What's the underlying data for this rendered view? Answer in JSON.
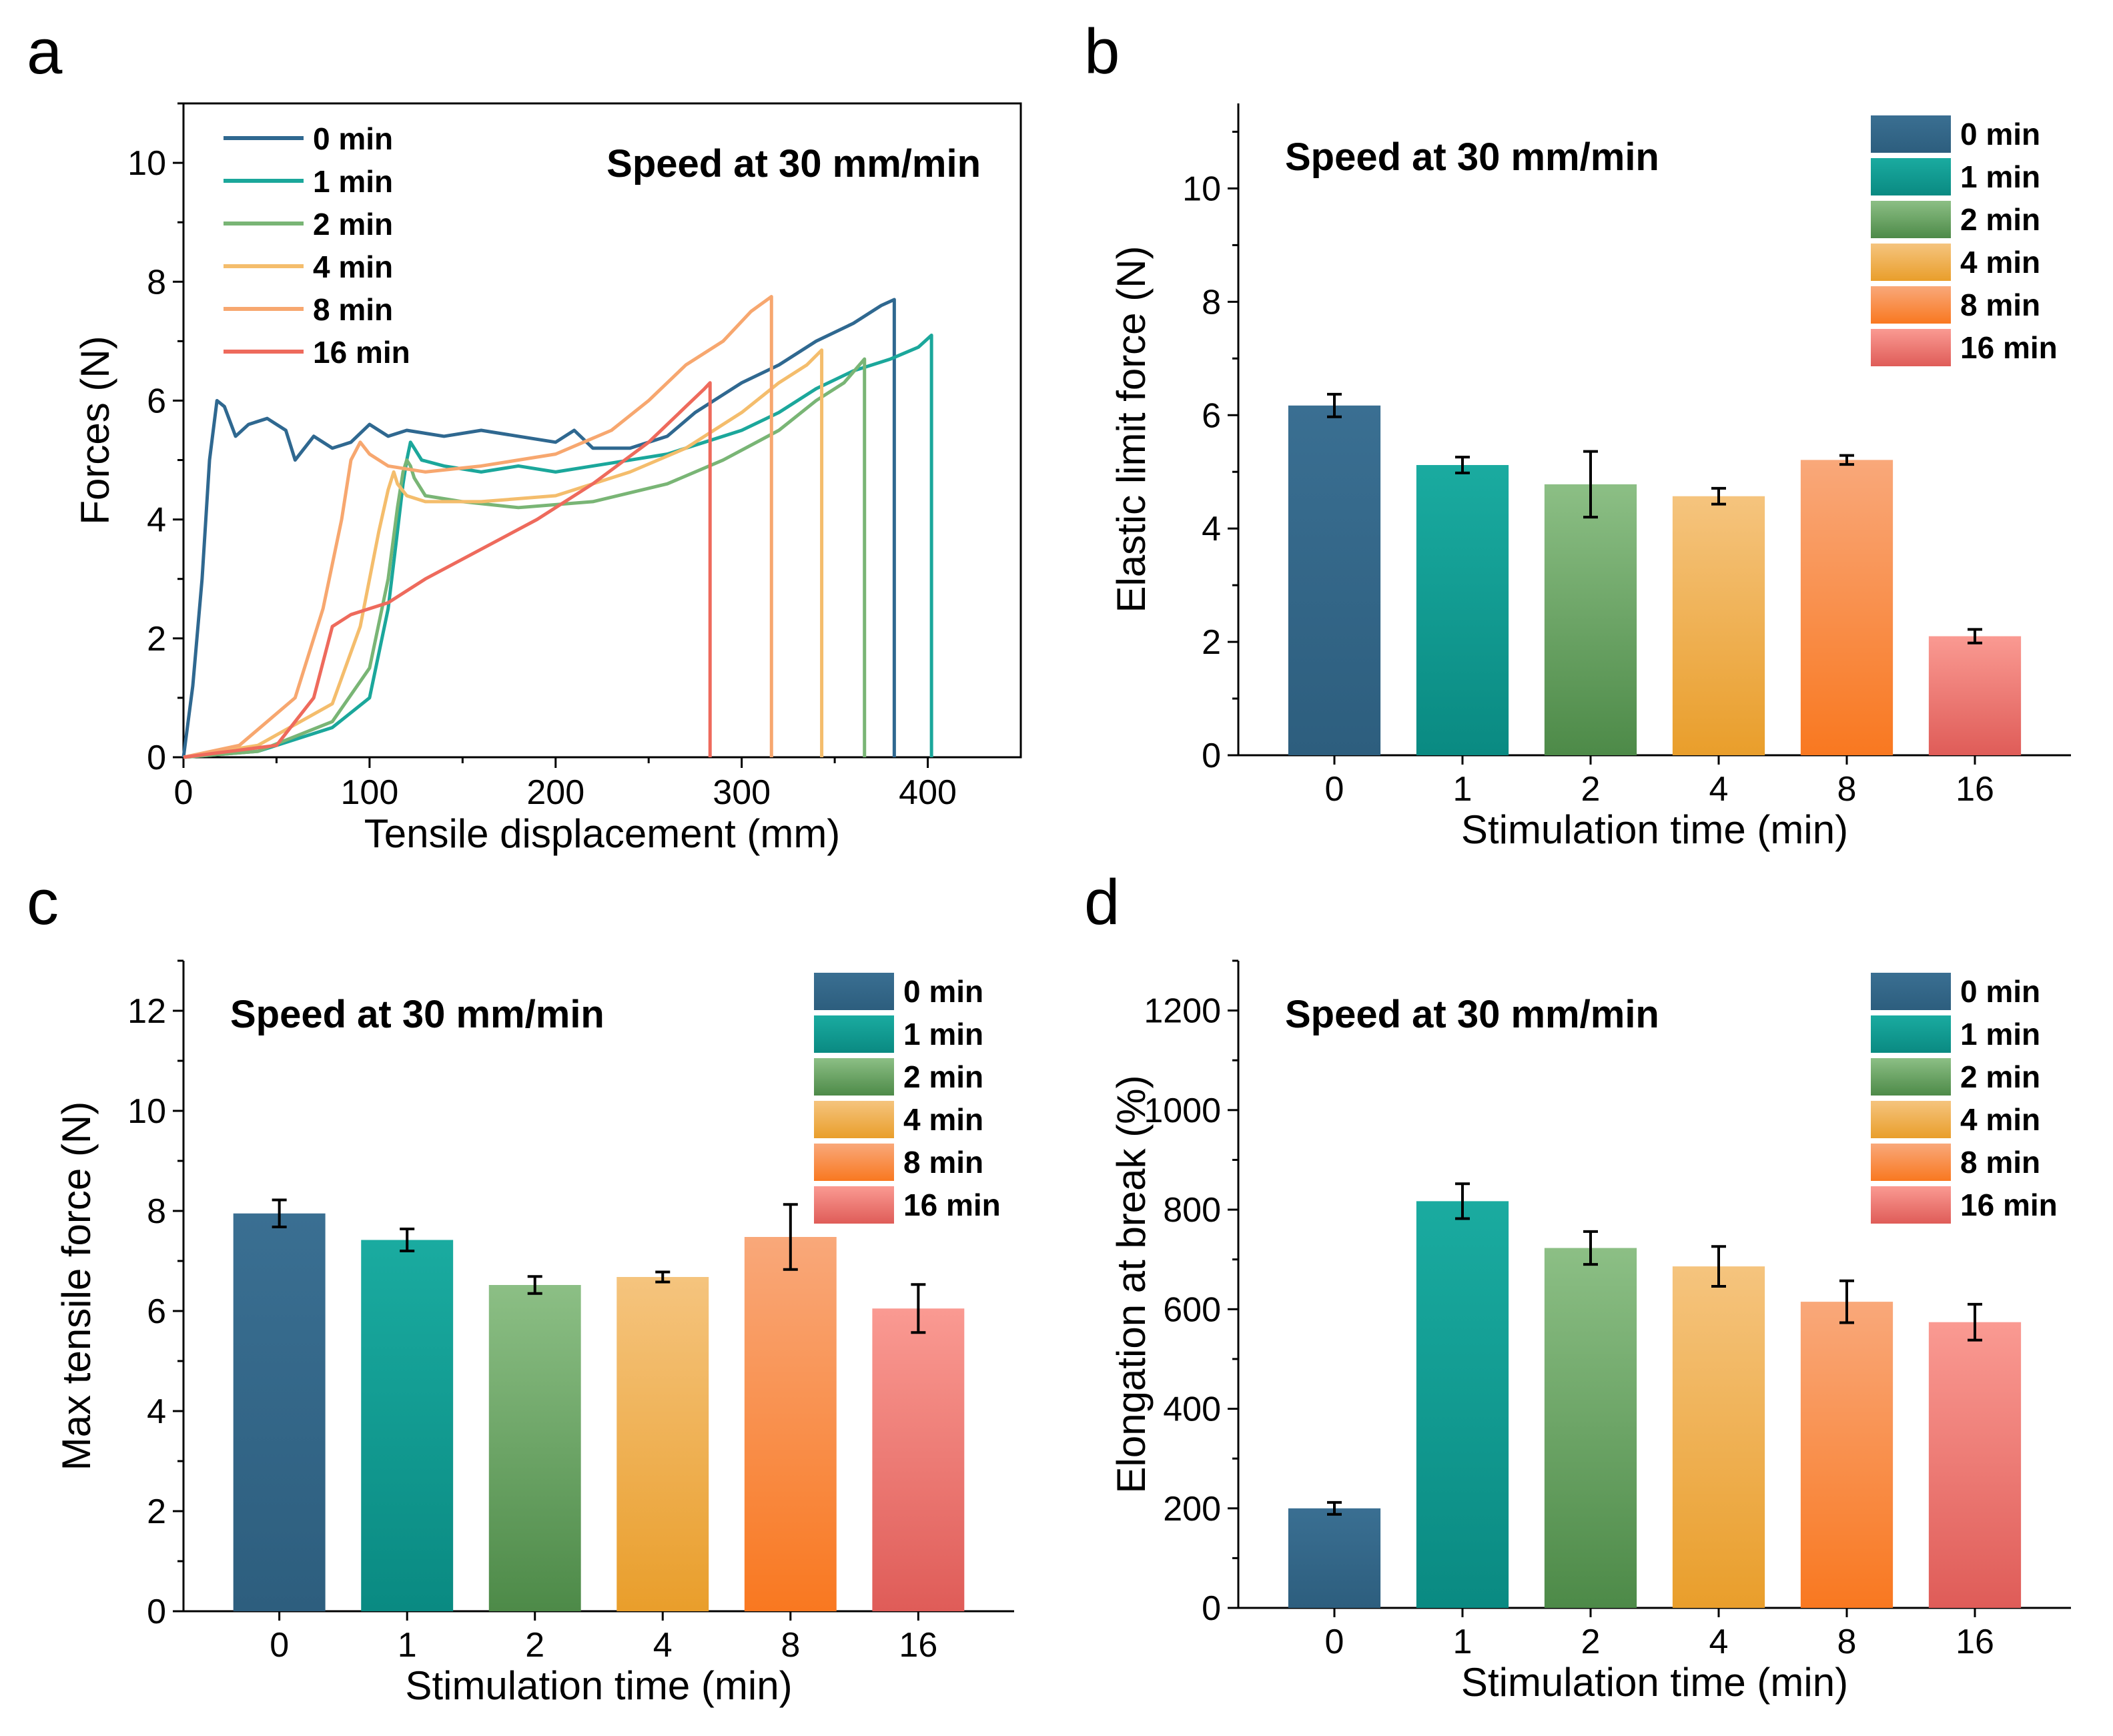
{
  "panel_letters": [
    "a",
    "b",
    "c",
    "d"
  ],
  "legend_labels": [
    "0 min",
    "1 min",
    "2 min",
    "4 min",
    "8 min",
    "16 min"
  ],
  "colors": {
    "0 min": [
      "#3a6f92",
      "#2d5e7e"
    ],
    "1 min": [
      "#1aaba0",
      "#0a8a82"
    ],
    "2 min": [
      "#8cbf85",
      "#4d8a48"
    ],
    "4 min": [
      "#f5c47e",
      "#e99e2b"
    ],
    "8 min": [
      "#f9a87a",
      "#f97820"
    ],
    "16 min": [
      "#fa9a92",
      "#df5c58"
    ],
    "line": {
      "0 min": "#2f6890",
      "1 min": "#1ba79b",
      "2 min": "#79b575",
      "4 min": "#f4bd6c",
      "8 min": "#f7a76f",
      "16 min": "#ee6a5c"
    }
  },
  "chart_data": [
    {
      "panel": "a",
      "type": "line",
      "title": "Speed at 30 mm/min",
      "xlabel": "Tensile displacement (mm)",
      "ylabel": "Forces (N)",
      "xlim": [
        0,
        450
      ],
      "ylim": [
        0,
        11
      ],
      "xticks": [
        0,
        100,
        200,
        300,
        400
      ],
      "yticks": [
        0,
        2,
        4,
        6,
        8,
        10
      ],
      "legend_position": "top-left",
      "series": [
        {
          "name": "0 min",
          "x": [
            0,
            5,
            10,
            14,
            18,
            22,
            28,
            35,
            45,
            55,
            60,
            70,
            80,
            90,
            100,
            110,
            120,
            140,
            160,
            180,
            200,
            210,
            220,
            240,
            260,
            275,
            290,
            300,
            320,
            340,
            360,
            375,
            382,
            382
          ],
          "y": [
            0,
            1.2,
            3.0,
            5.0,
            6.0,
            5.9,
            5.4,
            5.6,
            5.7,
            5.5,
            5.0,
            5.4,
            5.2,
            5.3,
            5.6,
            5.4,
            5.5,
            5.4,
            5.5,
            5.4,
            5.3,
            5.5,
            5.2,
            5.2,
            5.4,
            5.8,
            6.1,
            6.3,
            6.6,
            7.0,
            7.3,
            7.6,
            7.7,
            0
          ]
        },
        {
          "name": "1 min",
          "x": [
            0,
            40,
            80,
            100,
            110,
            115,
            118,
            120,
            122,
            124,
            128,
            140,
            160,
            180,
            200,
            220,
            240,
            260,
            280,
            300,
            320,
            340,
            360,
            380,
            395,
            402,
            402
          ],
          "y": [
            0,
            0.1,
            0.5,
            1.0,
            2.5,
            3.8,
            4.6,
            5.0,
            5.3,
            5.2,
            5.0,
            4.9,
            4.8,
            4.9,
            4.8,
            4.9,
            5.0,
            5.1,
            5.3,
            5.5,
            5.8,
            6.2,
            6.5,
            6.7,
            6.9,
            7.1,
            0
          ]
        },
        {
          "name": "2 min",
          "x": [
            0,
            40,
            80,
            100,
            110,
            115,
            118,
            120,
            122,
            124,
            130,
            150,
            180,
            220,
            260,
            290,
            320,
            340,
            355,
            366,
            366
          ],
          "y": [
            0,
            0.1,
            0.6,
            1.5,
            3.0,
            4.2,
            4.8,
            5.0,
            4.9,
            4.7,
            4.4,
            4.3,
            4.2,
            4.3,
            4.6,
            5.0,
            5.5,
            6.0,
            6.3,
            6.7,
            0
          ]
        },
        {
          "name": "4 min",
          "x": [
            0,
            40,
            80,
            95,
            105,
            110,
            113,
            115,
            120,
            130,
            160,
            200,
            240,
            270,
            300,
            320,
            335,
            343,
            343
          ],
          "y": [
            0,
            0.2,
            0.9,
            2.2,
            3.8,
            4.5,
            4.8,
            4.6,
            4.4,
            4.3,
            4.3,
            4.4,
            4.8,
            5.2,
            5.8,
            6.3,
            6.6,
            6.85,
            0
          ]
        },
        {
          "name": "8 min",
          "x": [
            0,
            30,
            60,
            75,
            85,
            90,
            95,
            100,
            110,
            130,
            160,
            200,
            230,
            250,
            270,
            290,
            305,
            316,
            316
          ],
          "y": [
            0,
            0.2,
            1.0,
            2.5,
            4.0,
            5.0,
            5.3,
            5.1,
            4.9,
            4.8,
            4.9,
            5.1,
            5.5,
            6.0,
            6.6,
            7.0,
            7.5,
            7.75,
            0
          ]
        },
        {
          "name": "16 min",
          "x": [
            0,
            50,
            70,
            80,
            90,
            100,
            110,
            130,
            160,
            190,
            220,
            250,
            270,
            280,
            283,
            283
          ],
          "y": [
            0,
            0.2,
            1.0,
            2.2,
            2.4,
            2.5,
            2.6,
            3.0,
            3.5,
            4.0,
            4.6,
            5.3,
            5.9,
            6.2,
            6.3,
            0
          ]
        }
      ]
    },
    {
      "panel": "b",
      "type": "bar",
      "title": "Speed at 30 mm/min",
      "xlabel": "Stimulation time (min)",
      "ylabel": "Elastic limit force (N)",
      "categories": [
        "0",
        "1",
        "2",
        "4",
        "8",
        "16"
      ],
      "values": [
        6.17,
        5.12,
        4.78,
        4.57,
        5.21,
        2.1
      ],
      "errors": [
        0.2,
        0.14,
        0.58,
        0.14,
        0.08,
        0.12
      ],
      "ylim": [
        0,
        11.5
      ],
      "yticks": [
        0,
        2,
        4,
        6,
        8,
        10
      ],
      "legend_position": "top-right"
    },
    {
      "panel": "c",
      "type": "bar",
      "title": "Speed at 30 mm/min",
      "xlabel": "Stimulation time (min)",
      "ylabel": "Max tensile force (N)",
      "categories": [
        "0",
        "1",
        "2",
        "4",
        "8",
        "16"
      ],
      "values": [
        7.95,
        7.42,
        6.52,
        6.68,
        7.48,
        6.05
      ],
      "errors": [
        0.27,
        0.22,
        0.17,
        0.1,
        0.65,
        0.48
      ],
      "ylim": [
        0,
        13
      ],
      "yticks": [
        0,
        2,
        4,
        6,
        8,
        10,
        12
      ],
      "legend_position": "top-right"
    },
    {
      "panel": "d",
      "type": "bar",
      "title": "Speed at 30 mm/min",
      "xlabel": "Stimulation time (min)",
      "ylabel": "Elongation at break (%)",
      "categories": [
        "0",
        "1",
        "2",
        "4",
        "8",
        "16"
      ],
      "values": [
        200,
        817,
        723,
        686,
        615,
        574
      ],
      "errors": [
        12,
        35,
        33,
        40,
        42,
        36
      ],
      "ylim": [
        0,
        1300
      ],
      "yticks": [
        0,
        200,
        400,
        600,
        800,
        1000,
        1200
      ],
      "legend_position": "top-right"
    }
  ]
}
